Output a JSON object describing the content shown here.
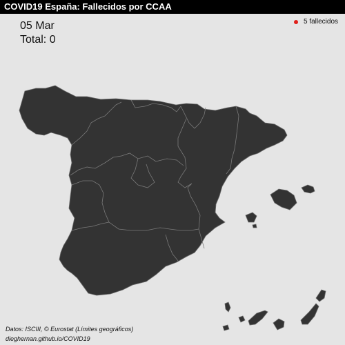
{
  "header": {
    "title": "COVID19 España: Fallecidos por CCAA"
  },
  "overlay": {
    "date": "05 Mar",
    "total": "Total: 0"
  },
  "legend": {
    "label": "5 fallecidos",
    "dot_color": "#e0201b"
  },
  "colors": {
    "background": "#e5e5e5",
    "land": "#333333",
    "borders": "#6a6a6a"
  },
  "footer": {
    "source": "Datos: ISCIII, © Eurostat (Límites geográficos)",
    "credit": "dieghernan.github.io/COVID19"
  }
}
